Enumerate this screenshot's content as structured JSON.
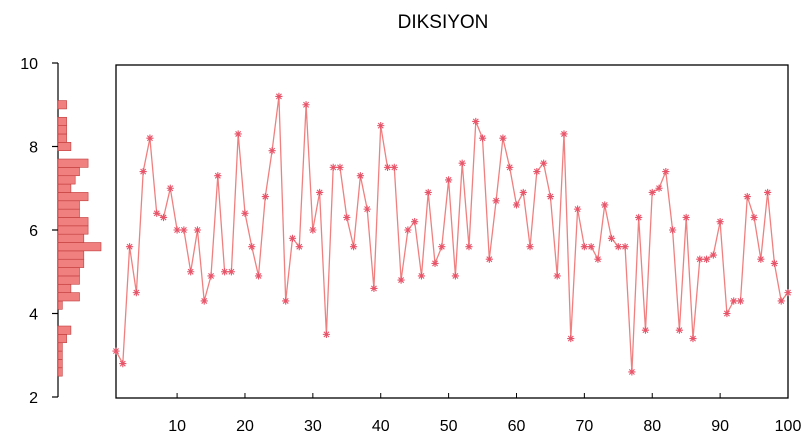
{
  "chart_data": {
    "type": "line",
    "title": "DIKSIYON",
    "x": [
      1,
      2,
      3,
      4,
      5,
      6,
      7,
      8,
      9,
      10,
      11,
      12,
      13,
      14,
      15,
      16,
      17,
      18,
      19,
      20,
      21,
      22,
      23,
      24,
      25,
      26,
      27,
      28,
      29,
      30,
      31,
      32,
      33,
      34,
      35,
      36,
      37,
      38,
      39,
      40,
      41,
      42,
      43,
      44,
      45,
      46,
      47,
      48,
      49,
      50,
      51,
      52,
      53,
      54,
      55,
      56,
      57,
      58,
      59,
      60,
      61,
      62,
      63,
      64,
      65,
      66,
      67,
      68,
      69,
      70,
      71,
      72,
      73,
      74,
      75,
      76,
      77,
      78,
      79,
      80,
      81,
      82,
      83,
      84,
      85,
      86,
      87,
      88,
      89,
      90,
      91,
      92,
      93,
      94,
      95,
      96,
      97,
      98,
      99,
      100
    ],
    "series": [
      {
        "color": "#f08080",
        "marker": "asterisk",
        "values": [
          3.1,
          2.8,
          5.6,
          4.5,
          7.4,
          8.2,
          6.4,
          6.3,
          7.0,
          6.0,
          6.0,
          5.0,
          6.0,
          4.3,
          4.9,
          7.3,
          5.0,
          5.0,
          8.3,
          6.4,
          5.6,
          4.9,
          6.8,
          7.9,
          9.2,
          4.3,
          5.8,
          5.6,
          9.0,
          6.0,
          6.9,
          3.5,
          7.5,
          7.5,
          6.3,
          5.6,
          7.3,
          6.5,
          4.6,
          8.5,
          7.5,
          7.5,
          4.8,
          6.0,
          6.2,
          4.9,
          6.9,
          5.2,
          5.6,
          7.2,
          4.9,
          7.6,
          5.6,
          8.6,
          8.2,
          5.3,
          6.7,
          8.2,
          7.5,
          6.6,
          6.9,
          5.6,
          7.4,
          7.6,
          6.8,
          4.9,
          8.3,
          3.4,
          6.5,
          5.6,
          5.6,
          5.3,
          6.6,
          5.8,
          5.6,
          5.6,
          2.6,
          6.3,
          3.6,
          6.9,
          7.0,
          7.4,
          6.0,
          3.6,
          6.3,
          3.4,
          5.3,
          5.3,
          5.4,
          6.2,
          4.0,
          4.3,
          4.3,
          6.8,
          6.3,
          5.3,
          6.9,
          5.2,
          4.3,
          4.5
        ]
      }
    ],
    "xticks": [
      "10",
      "20",
      "30",
      "40",
      "50",
      "60",
      "70",
      "80",
      "90",
      "100"
    ],
    "xtick_values": [
      10,
      20,
      30,
      40,
      50,
      60,
      70,
      80,
      90,
      100
    ],
    "yticks": [
      "2",
      "4",
      "6",
      "8",
      "10"
    ],
    "ytick_values": [
      2,
      4,
      6,
      8,
      10
    ],
    "xlim": [
      1,
      100
    ],
    "ylim": [
      2,
      10
    ],
    "grid": false,
    "histogram": {
      "orientation": "horizontal",
      "bin_width": 0.2,
      "color": "#f08080",
      "bins": [
        {
          "y": 2.6,
          "count": 1
        },
        {
          "y": 2.8,
          "count": 1
        },
        {
          "y": 3.0,
          "count": 1
        },
        {
          "y": 3.2,
          "count": 1
        },
        {
          "y": 3.4,
          "count": 2
        },
        {
          "y": 3.6,
          "count": 3
        },
        {
          "y": 4.2,
          "count": 1
        },
        {
          "y": 4.4,
          "count": 5
        },
        {
          "y": 4.6,
          "count": 3
        },
        {
          "y": 4.8,
          "count": 5
        },
        {
          "y": 5.0,
          "count": 5
        },
        {
          "y": 5.2,
          "count": 6
        },
        {
          "y": 5.4,
          "count": 6
        },
        {
          "y": 5.6,
          "count": 10
        },
        {
          "y": 5.8,
          "count": 6
        },
        {
          "y": 6.0,
          "count": 7
        },
        {
          "y": 6.2,
          "count": 7
        },
        {
          "y": 6.4,
          "count": 5
        },
        {
          "y": 6.6,
          "count": 5
        },
        {
          "y": 6.8,
          "count": 7
        },
        {
          "y": 7.0,
          "count": 3
        },
        {
          "y": 7.2,
          "count": 4
        },
        {
          "y": 7.4,
          "count": 5
        },
        {
          "y": 7.6,
          "count": 7
        },
        {
          "y": 8.0,
          "count": 3
        },
        {
          "y": 8.2,
          "count": 2
        },
        {
          "y": 8.4,
          "count": 2
        },
        {
          "y": 8.6,
          "count": 2
        },
        {
          "y": 9.0,
          "count": 2
        }
      ]
    }
  }
}
